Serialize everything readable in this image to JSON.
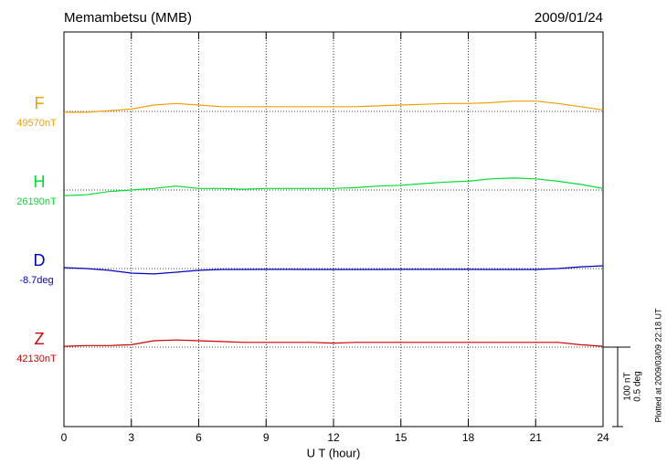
{
  "chart_data": {
    "type": "line",
    "title": "Memambetsu (MMB)",
    "date": "2009/01/24",
    "xlabel": "U T (hour)",
    "plotted": "Plotted at 2009/03/09 22:18 UT",
    "xlim": [
      0,
      24
    ],
    "xticks": [
      0,
      3,
      6,
      9,
      12,
      15,
      18,
      21,
      24
    ],
    "grid": true,
    "scale": [
      {
        "value": 100,
        "label": "100 nT"
      },
      {
        "value": 0.5,
        "label": "0.5 deg"
      }
    ],
    "x": [
      0,
      1,
      2,
      3,
      4,
      5,
      6,
      7,
      8,
      9,
      10,
      11,
      12,
      13,
      14,
      15,
      16,
      17,
      18,
      19,
      20,
      21,
      22,
      23,
      24
    ],
    "series": [
      {
        "name": "F",
        "color": "#f0a000",
        "scale": 0,
        "baseline": {
          "value": 49570,
          "label": "49570nT"
        },
        "values": [
          49569,
          49569,
          49571,
          49573,
          49578,
          49580,
          49578,
          49576,
          49576,
          49576,
          49576,
          49576,
          49576,
          49576,
          49577,
          49578,
          49579,
          49580,
          49580,
          49581,
          49583,
          49583,
          49580,
          49576,
          49572
        ]
      },
      {
        "name": "H",
        "color": "#00dd33",
        "scale": 0,
        "baseline": {
          "value": 26190,
          "label": "26190nT"
        },
        "values": [
          26183,
          26184,
          26188,
          26190,
          26192,
          26195,
          26192,
          26192,
          26191,
          26192,
          26192,
          26192,
          26192,
          26193,
          26195,
          26196,
          26198,
          26200,
          26201,
          26204,
          26205,
          26204,
          26201,
          26197,
          26192
        ]
      },
      {
        "name": "D",
        "color": "#0000c0",
        "scale": 1,
        "baseline": {
          "value": -8.7,
          "label": "-8.7deg"
        },
        "values": [
          -8.694,
          -8.7,
          -8.711,
          -8.729,
          -8.734,
          -8.723,
          -8.711,
          -8.706,
          -8.706,
          -8.705,
          -8.705,
          -8.706,
          -8.706,
          -8.706,
          -8.706,
          -8.705,
          -8.705,
          -8.705,
          -8.705,
          -8.706,
          -8.706,
          -8.706,
          -8.7,
          -8.689,
          -8.683
        ]
      },
      {
        "name": "Z",
        "color": "#d00000",
        "scale": 0,
        "baseline": {
          "value": 42130,
          "label": "42130nT"
        },
        "values": [
          42131,
          42132,
          42132,
          42133,
          42138,
          42139,
          42138,
          42137,
          42136,
          42136,
          42136,
          42136,
          42135,
          42136,
          42136,
          42136,
          42136,
          42136,
          42136,
          42136,
          42136,
          42136,
          42136,
          42133,
          42131
        ]
      }
    ]
  }
}
